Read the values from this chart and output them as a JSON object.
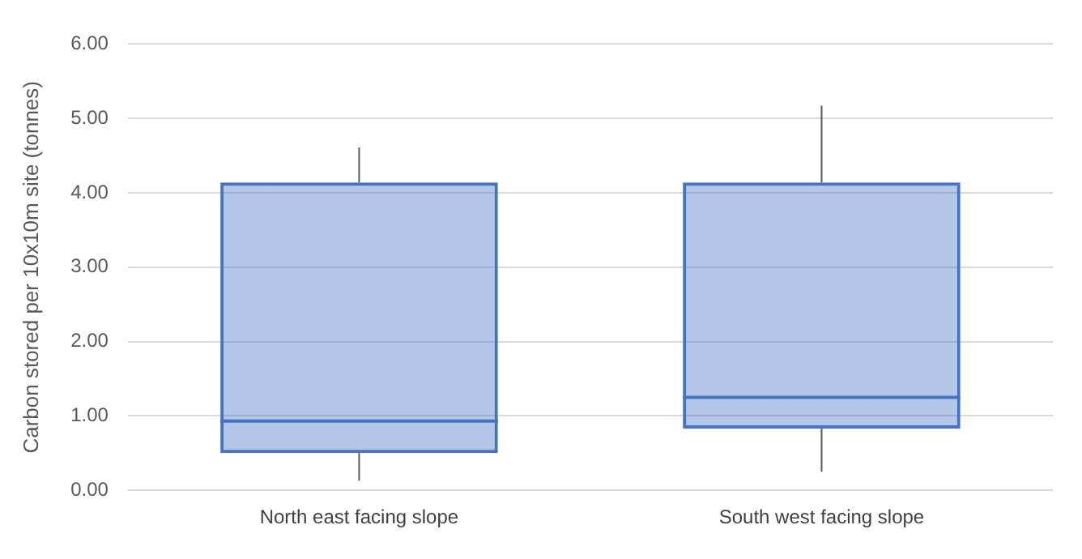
{
  "chart_data": {
    "type": "box",
    "ylabel": "Carbon stored per 10x10m site (tonnes)",
    "categories": [
      "North east facing slope",
      "South west facing slope"
    ],
    "boxes": [
      {
        "low": 0.13,
        "q1": 0.5,
        "median": 0.93,
        "q3": 4.14,
        "high": 4.61
      },
      {
        "low": 0.25,
        "q1": 0.83,
        "median": 1.25,
        "q3": 4.14,
        "high": 5.17
      }
    ],
    "color": "#4472c4",
    "ylim": [
      0,
      6
    ],
    "yticks": [
      {
        "value": 0,
        "label": "0.00"
      },
      {
        "value": 1,
        "label": "1.00"
      },
      {
        "value": 2,
        "label": "2.00"
      },
      {
        "value": 3,
        "label": "3.00"
      },
      {
        "value": 4,
        "label": "4.00"
      },
      {
        "value": 5,
        "label": "5.00"
      },
      {
        "value": 6,
        "label": "6.00"
      }
    ],
    "grid": "y",
    "legend": false
  }
}
